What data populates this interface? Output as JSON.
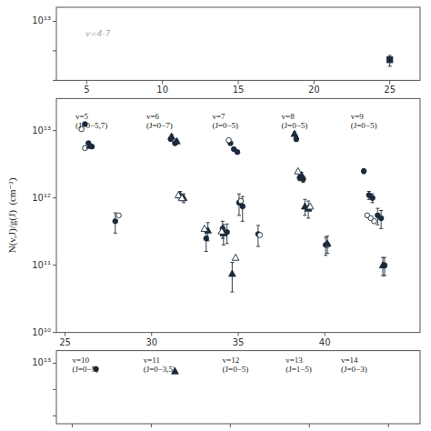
{
  "chart_data": [
    {
      "type": "scatter",
      "log": "y",
      "xlim": [
        3,
        27
      ],
      "ylim": [
        100000000000.0,
        30000000000000.0
      ],
      "xticks": [
        5,
        10,
        15,
        20,
        25
      ],
      "yticks": [
        {
          "value": 100000000000.0,
          "label": null
        },
        {
          "value": 1000000000000.0,
          "label": null
        },
        {
          "value": 10000000000000.0,
          "label": "10¹³"
        }
      ],
      "annotations": [
        {
          "text": "v=4-7"
        }
      ],
      "series": [
        {
          "marker": "square",
          "x": [
            25.0
          ],
          "values": [
            500000000000.0
          ],
          "yerr": [
            200000000000.0
          ]
        }
      ]
    },
    {
      "type": "scatter",
      "log": "y",
      "ylabel": "N(v,J)/g(J)  (cm⁻²)",
      "xlim": [
        24.5,
        45.5
      ],
      "ylim": [
        10000000000.0,
        30000000000000.0
      ],
      "xticks": [
        25,
        30,
        35,
        40
      ],
      "yticks": [
        {
          "value": 10000000000.0,
          "label": "10¹⁰"
        },
        {
          "value": 100000000000.0,
          "label": "10¹¹"
        },
        {
          "value": 1000000000000.0,
          "label": "10¹²"
        },
        {
          "value": 10000000000000.0,
          "label": "10¹³"
        }
      ],
      "annotations": [
        {
          "x": 25.6,
          "y": 19000000000000.0,
          "text": "v=5\n(J=0−5,7)"
        },
        {
          "x": 29.7,
          "y": 19000000000000.0,
          "text": "v=6\n(J=0−7)"
        },
        {
          "x": 33.5,
          "y": 19000000000000.0,
          "text": "v=7\n(J=0−5)"
        },
        {
          "x": 37.5,
          "y": 19000000000000.0,
          "text": "v=8\n(J=0−5)"
        },
        {
          "x": 41.5,
          "y": 19000000000000.0,
          "text": "v=9\n(J=0−5)"
        }
      ],
      "series": [
        {
          "marker": "circle",
          "x": [
            26.15,
            26.35,
            26.55,
            27.9,
            31.1,
            31.35,
            33.15,
            34.1,
            34.35,
            34.55,
            34.75,
            34.95,
            35.05,
            35.25,
            36.15,
            38.35,
            38.55,
            38.75,
            40.05,
            42.25,
            42.55,
            42.75,
            43.05,
            43.25,
            43.45
          ],
          "values": [
            12500000000000.0,
            6500000000000.0,
            5800000000000.0,
            450000000000.0,
            7500000000000.0,
            6500000000000.0,
            250000000000.0,
            350000000000.0,
            310000000000.0,
            6500000000000.0,
            5300000000000.0,
            4800000000000.0,
            850000000000.0,
            750000000000.0,
            290000000000.0,
            7500000000000.0,
            2000000000000.0,
            1900000000000.0,
            200000000000.0,
            2500000000000.0,
            1100000000000.0,
            1000000000000.0,
            550000000000.0,
            500000000000.0,
            100000000000.0
          ],
          "yerr": [
            500000000000.0,
            200000000000.0,
            200000000000.0,
            150000000000.0,
            400000000000.0,
            300000000000.0,
            90000000000.0,
            100000000000.0,
            100000000000.0,
            300000000000.0,
            200000000000.0,
            200000000000.0,
            300000000000.0,
            300000000000.0,
            100000000000.0,
            600000000000.0,
            200000000000.0,
            200000000000.0,
            60000000000.0,
            200000000000.0,
            150000000000.0,
            150000000000.0,
            150000000000.0,
            150000000000.0,
            30000000000.0
          ]
        },
        {
          "marker": "circle-open",
          "x": [
            25.95,
            26.15,
            28.1,
            34.45,
            35.15,
            36.25,
            40.15,
            42.45,
            42.65,
            42.85
          ],
          "values": [
            10500000000000.0,
            5500000000000.0,
            550000000000.0,
            7200000000000.0,
            900000000000.0,
            280000000000.0,
            200000000000.0,
            550000000000.0,
            500000000000.0,
            450000000000.0
          ]
        },
        {
          "marker": "triangle",
          "x": [
            26.45,
            31.15,
            31.45,
            31.65,
            31.85,
            33.25,
            34.15,
            34.65,
            38.25,
            38.65,
            38.85,
            39.05,
            40.15,
            43.35
          ],
          "values": [
            6000000000000.0,
            8200000000000.0,
            7000000000000.0,
            1100000000000.0,
            1000000000000.0,
            330000000000.0,
            300000000000.0,
            75000000000.0,
            9000000000000.0,
            2200000000000.0,
            750000000000.0,
            700000000000.0,
            210000000000.0,
            100000000000.0
          ],
          "yerr": [
            200000000000.0,
            500000000000.0,
            300000000000.0,
            150000000000.0,
            150000000000.0,
            100000000000.0,
            100000000000.0,
            35000000000.0,
            600000000000.0,
            200000000000.0,
            200000000000.0,
            200000000000.0,
            60000000000.0,
            30000000000.0
          ]
        },
        {
          "marker": "triangle-open",
          "x": [
            31.55,
            31.75,
            33.05,
            34.05,
            34.85,
            38.45,
            39.15
          ],
          "values": [
            1100000000000.0,
            1000000000000.0,
            350000000000.0,
            320000000000.0,
            130000000000.0,
            2500000000000.0,
            750000000000.0
          ]
        }
      ]
    },
    {
      "type": "scatter",
      "log": "y",
      "tick_labels": "y",
      "xlim": [
        44,
        67
      ],
      "ylim": [
        50000000000.0,
        30000000000000.0
      ],
      "xticks": [
        45,
        50,
        55,
        60,
        65
      ],
      "yticks": [
        {
          "value": 100000000000.0,
          "label": null
        },
        {
          "value": 1000000000000.0,
          "label": null
        },
        {
          "value": 10000000000000.0,
          "label": "10¹³"
        }
      ],
      "annotations": [
        {
          "x": 45.0,
          "y": 19000000000000.0,
          "text": "v=10\n(J=0−5)"
        },
        {
          "x": 49.5,
          "y": 19000000000000.0,
          "text": "v=11\n(J=0−3,5)"
        },
        {
          "x": 54.5,
          "y": 19000000000000.0,
          "text": "v=12\n(J=0−5)"
        },
        {
          "x": 58.5,
          "y": 19000000000000.0,
          "text": "v=13\n(J=1−5)"
        },
        {
          "x": 62.0,
          "y": 19000000000000.0,
          "text": "v=14\n(J=0−3)"
        }
      ],
      "series": [
        {
          "marker": "circle",
          "x": [
            46.5
          ],
          "values": [
            6000000000000.0
          ],
          "yerr": [
            300000000000.0
          ]
        },
        {
          "marker": "triangle",
          "x": [
            51.5
          ],
          "values": [
            5000000000000.0
          ],
          "yerr": [
            300000000000.0
          ]
        }
      ]
    }
  ]
}
